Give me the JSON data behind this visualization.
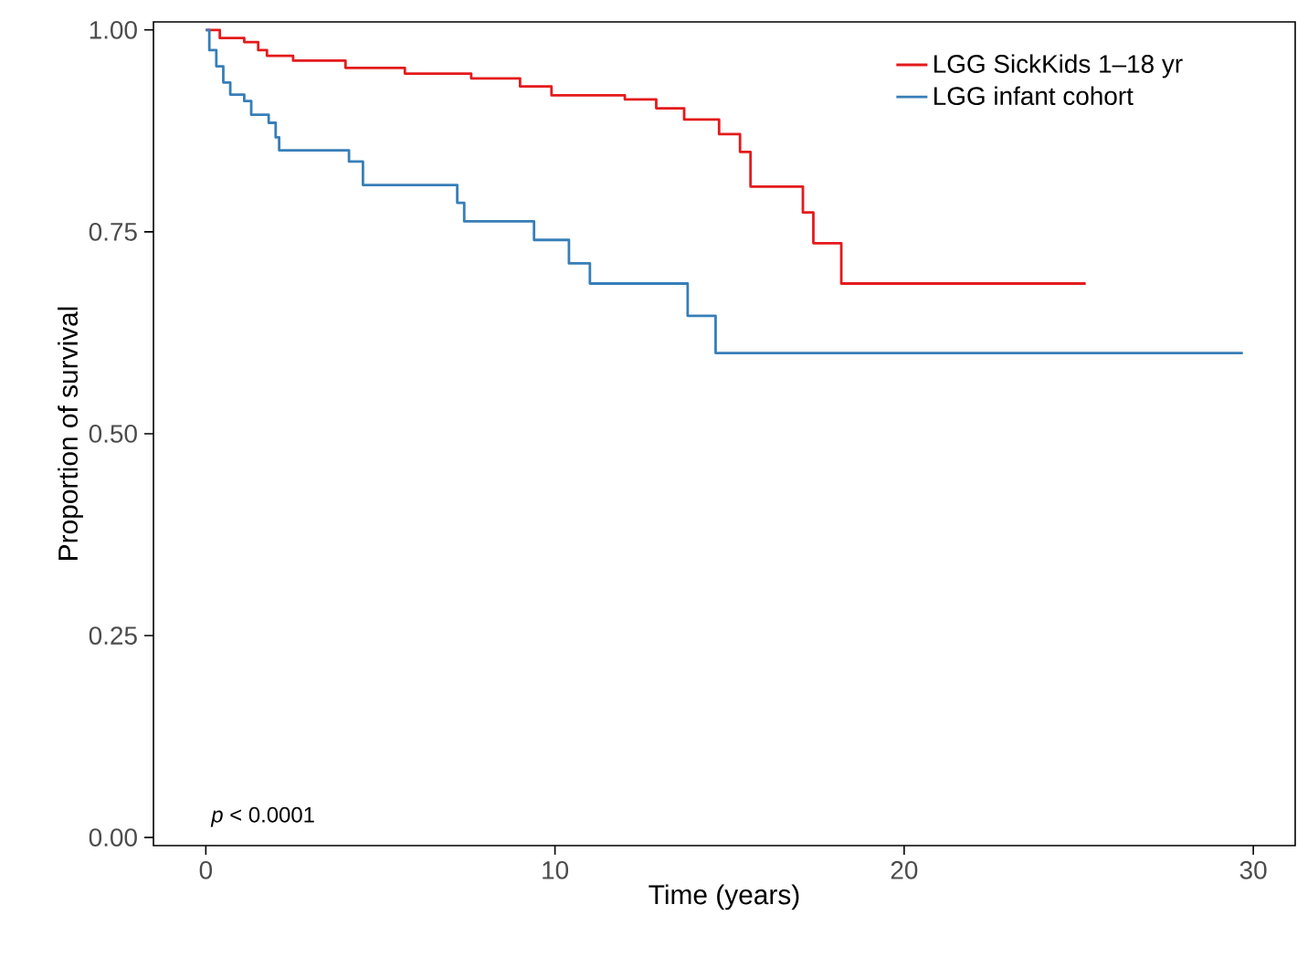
{
  "chart_data": {
    "type": "step",
    "xlabel": "Time (years)",
    "ylabel": "Proportion of survival",
    "xlim": [
      -1.5,
      31.2
    ],
    "ylim": [
      -0.01,
      1.01
    ],
    "xticks": [
      0,
      10,
      20,
      30
    ],
    "yticks": [
      {
        "value": 0,
        "label": "0.00"
      },
      {
        "value": 0.25,
        "label": "0.25"
      },
      {
        "value": 0.5,
        "label": "0.50"
      },
      {
        "value": 0.75,
        "label": "0.75"
      },
      {
        "value": 1,
        "label": "1.00"
      }
    ],
    "grid": false,
    "legend": "top right",
    "line_style": "solid",
    "annotations": [
      "*p* < 0.0001"
    ],
    "series": [
      {
        "name": "LGG SickKids 1–18 yr",
        "color": "#e41a1c",
        "x": [
          0,
          0.4,
          1.1,
          1.5,
          1.75,
          2.5,
          4.0,
          5.7,
          7.6,
          9.0,
          9.9,
          12.0,
          12.9,
          13.7,
          14.7,
          15.3,
          15.6,
          17.1,
          17.4,
          18.2,
          25.2
        ],
        "values": [
          1.0,
          0.99,
          0.985,
          0.975,
          0.968,
          0.962,
          0.953,
          0.946,
          0.94,
          0.93,
          0.919,
          0.914,
          0.903,
          0.889,
          0.871,
          0.849,
          0.806,
          0.774,
          0.736,
          0.686,
          0.686
        ]
      },
      {
        "name": "LGG infant cohort",
        "color": "#377eb8",
        "x": [
          0,
          0.1,
          0.3,
          0.5,
          0.7,
          1.1,
          1.3,
          1.8,
          2.0,
          2.1,
          4.1,
          4.5,
          7.2,
          7.4,
          9.4,
          10.4,
          11.0,
          13.8,
          14.6,
          29.7
        ],
        "values": [
          1.0,
          0.975,
          0.955,
          0.935,
          0.92,
          0.912,
          0.895,
          0.885,
          0.867,
          0.851,
          0.837,
          0.808,
          0.786,
          0.763,
          0.74,
          0.711,
          0.686,
          0.646,
          0.6,
          0.6
        ]
      }
    ]
  }
}
